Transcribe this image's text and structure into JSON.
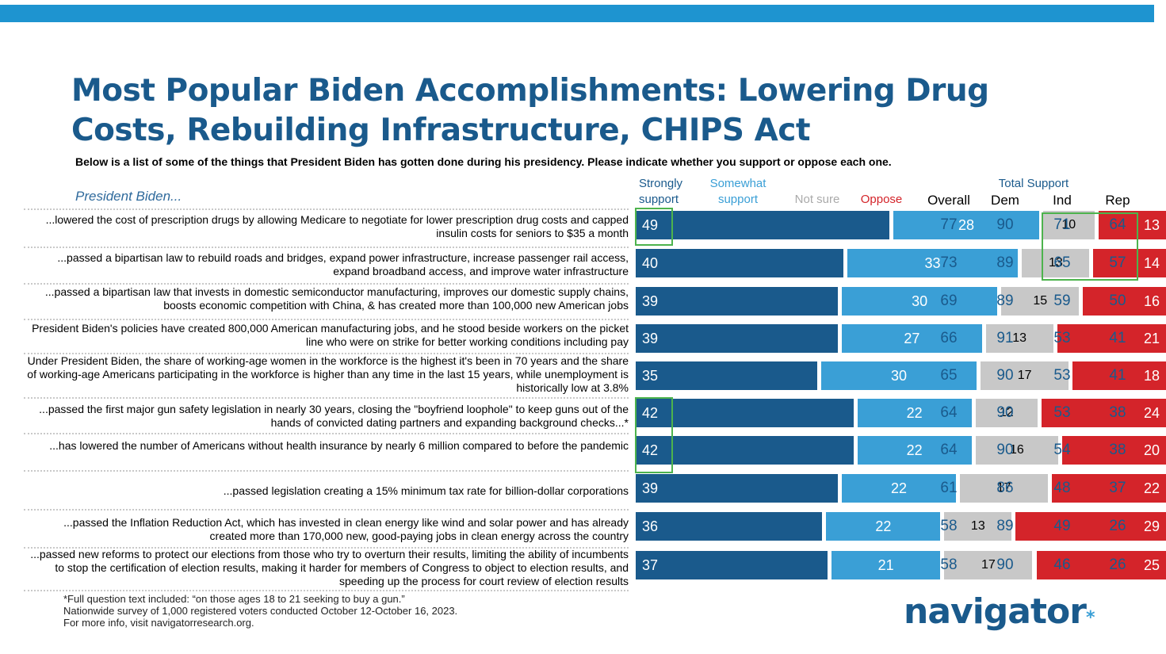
{
  "title": "Most Popular Biden Accomplishments: Lowering Drug Costs, Rebuilding Infrastructure, CHIPS Act",
  "subtitle": "Below is a list of some of the things that President Biden has gotten done during his presidency. Please indicate whether you support or oppose each one.",
  "row_header": "President Biden...",
  "headers": {
    "strongly_support": "Strongly support",
    "somewhat_support": "Somewhat support",
    "not_sure": "Not sure",
    "oppose": "Oppose",
    "total_support": "Total Support",
    "overall": "Overall",
    "dem": "Dem",
    "ind": "Ind",
    "rep": "Rep"
  },
  "colors": {
    "strongly_support": "#1a5a8c",
    "somewhat_support": "#3a9fd6",
    "not_sure": "#c8c8c8",
    "oppose": "#d4242a",
    "highlight": "#4db34d"
  },
  "chart_data": {
    "type": "bar",
    "stacked": true,
    "orientation": "horizontal",
    "categories": [
      "...lowered the cost of prescription drugs by allowing Medicare to negotiate for lower prescription drug costs and capped insulin costs for seniors to $35 a month",
      "...passed a bipartisan law to rebuild roads and bridges, expand power infrastructure, increase passenger rail access, expand broadband access, and improve water infrastructure",
      "...passed a bipartisan law that invests in domestic semiconductor manufacturing, improves our domestic supply chains, boosts economic competition with China, & has created more than 100,000 new American jobs",
      "President Biden's policies have created 800,000 American manufacturing jobs, and he stood beside workers on the picket line who were on strike for better working conditions including pay",
      "Under President Biden, the share of working-age women in the workforce is the highest it's been in 70 years and the share of working-age Americans participating in the workforce is higher than any time in the last 15 years, while unemployment is historically low at 3.8%",
      "...passed the first major gun safety legislation in nearly 30 years, closing the \"boyfriend loophole\" to keep guns out of the hands of convicted dating partners and expanding background checks...*",
      "...has lowered the number of Americans without health insurance by nearly 6 million compared to before the pandemic",
      "...passed legislation creating a 15% minimum tax rate for billion-dollar corporations",
      "...passed the Inflation Reduction Act, which has invested in clean energy like wind and solar power and has already created more than 170,000 new, good-paying jobs in clean energy across the country",
      "...passed new reforms to protect our elections from those who try to overturn their results, limiting the ability of incumbents to stop the certification of election results, making it harder for members of Congress to object to election results, and speeding up the process for court review of election results"
    ],
    "series": [
      {
        "name": "Strongly support",
        "values": [
          49,
          40,
          39,
          39,
          35,
          42,
          42,
          39,
          36,
          37
        ]
      },
      {
        "name": "Somewhat support",
        "values": [
          28,
          33,
          30,
          27,
          30,
          22,
          22,
          22,
          22,
          21
        ]
      },
      {
        "name": "Not sure",
        "values": [
          10,
          13,
          15,
          13,
          17,
          12,
          16,
          17,
          13,
          17
        ]
      },
      {
        "name": "Oppose",
        "values": [
          13,
          14,
          16,
          21,
          18,
          24,
          20,
          22,
          29,
          25
        ]
      }
    ],
    "total_support": {
      "overall": [
        77,
        73,
        69,
        66,
        65,
        64,
        64,
        61,
        58,
        58
      ],
      "dem": [
        90,
        89,
        89,
        91,
        90,
        90,
        90,
        86,
        89,
        90
      ],
      "ind": [
        71,
        65,
        59,
        53,
        53,
        53,
        54,
        48,
        49,
        46
      ],
      "rep": [
        64,
        57,
        50,
        41,
        41,
        38,
        38,
        37,
        26,
        26
      ]
    },
    "legend_position": "top"
  },
  "footnotes": [
    "*Full question text included: “on those ages 18 to 21 seeking to buy a gun.”",
    "Nationwide survey of 1,000 registered voters conducted October 12-October 16, 2023.",
    "For more info, visit navigatorresearch.org."
  ],
  "logo": {
    "text": "navigator",
    "mark": "*"
  }
}
